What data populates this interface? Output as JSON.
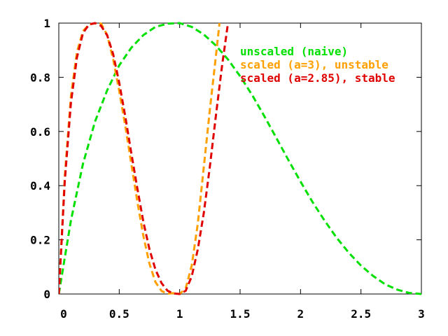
{
  "chart_data": {
    "type": "line",
    "title": "",
    "xlabel": "",
    "ylabel": "",
    "xlim": [
      0,
      3
    ],
    "ylim": [
      0,
      1
    ],
    "grid": false,
    "legend_position": "top-right",
    "x_ticks": [
      "0",
      "0.5",
      "1",
      "1.5",
      "2",
      "2.5",
      "3"
    ],
    "y_ticks": [
      "0",
      "0.2",
      "0.4",
      "0.6",
      "0.8",
      "1"
    ],
    "series": [
      {
        "name": "unscaled (naive)",
        "color": "#00e000",
        "x": [
          0,
          0.1,
          0.2,
          0.3,
          0.4,
          0.5,
          0.6,
          0.7,
          0.8,
          0.9,
          1.0,
          1.1,
          1.2,
          1.3,
          1.4,
          1.5,
          1.6,
          1.7,
          1.8,
          1.9,
          2.0,
          2.1,
          2.2,
          2.3,
          2.4,
          2.5,
          2.6,
          2.7,
          2.8,
          2.9,
          3.0
        ],
        "y": [
          0,
          0.271,
          0.48,
          0.637,
          0.752,
          0.844,
          0.909,
          0.956,
          0.986,
          0.998,
          1.0,
          0.986,
          0.958,
          0.917,
          0.866,
          0.804,
          0.734,
          0.657,
          0.576,
          0.494,
          0.415,
          0.339,
          0.27,
          0.207,
          0.152,
          0.105,
          0.067,
          0.036,
          0.016,
          0.004,
          0
        ]
      },
      {
        "name": "scaled (a=3),  unstable",
        "color": "#ffa000",
        "x": [
          0,
          0.05,
          0.1,
          0.15,
          0.2,
          0.25,
          0.3,
          0.333,
          0.35,
          0.4,
          0.45,
          0.5,
          0.55,
          0.6,
          0.65,
          0.7,
          0.75,
          0.8,
          0.85,
          0.9,
          0.95,
          1.0,
          1.05,
          1.1,
          1.15,
          1.2,
          1.25,
          1.3,
          1.33
        ],
        "y": [
          0,
          0.436,
          0.73,
          0.893,
          0.97,
          0.995,
          0.999,
          1.0,
          0.998,
          0.956,
          0.866,
          0.75,
          0.62,
          0.48,
          0.341,
          0.213,
          0.112,
          0.044,
          0.011,
          0.001,
          0.003,
          0.0,
          0.021,
          0.105,
          0.26,
          0.47,
          0.68,
          0.88,
          1.0
        ]
      },
      {
        "name": "scaled (a=2.85), stable",
        "color": "#e00000",
        "x": [
          0,
          0.05,
          0.1,
          0.15,
          0.2,
          0.25,
          0.3,
          0.35,
          0.4,
          0.45,
          0.5,
          0.55,
          0.6,
          0.65,
          0.7,
          0.75,
          0.8,
          0.85,
          0.9,
          0.95,
          1.0,
          1.05,
          1.1,
          1.15,
          1.2,
          1.25,
          1.3,
          1.35,
          1.4
        ],
        "y": [
          0,
          0.418,
          0.705,
          0.873,
          0.963,
          0.995,
          1.0,
          0.99,
          0.955,
          0.885,
          0.78,
          0.655,
          0.52,
          0.39,
          0.265,
          0.165,
          0.09,
          0.04,
          0.012,
          0.002,
          0.0,
          0.012,
          0.065,
          0.165,
          0.3,
          0.47,
          0.66,
          0.84,
          1.0
        ]
      }
    ]
  }
}
